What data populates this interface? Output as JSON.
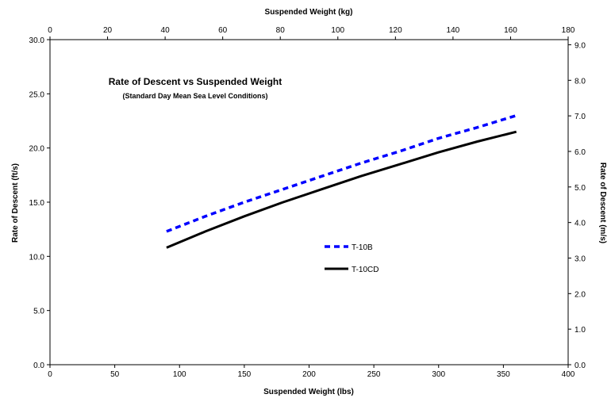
{
  "chart_data": {
    "type": "line",
    "title": "Rate of Descent vs Suspended Weight",
    "subtitle": "(Standard Day Mean Sea Level Conditions)",
    "xlabel": "Suspended Weight (lbs)",
    "ylabel": "Rate of Descent (ft/s)",
    "x2label": "Suspended Weight (kg)",
    "y2label": "Rate of Descent (m/s)",
    "xlim": [
      0,
      400
    ],
    "ylim": [
      0,
      30
    ],
    "x2lim": [
      0,
      180
    ],
    "y2lim": [
      0,
      9.144
    ],
    "xticks": [
      0,
      50,
      100,
      150,
      200,
      250,
      300,
      350,
      400
    ],
    "yticks": [
      0,
      5,
      10,
      15,
      20,
      25,
      30
    ],
    "x2ticks": [
      0,
      20,
      40,
      60,
      80,
      100,
      120,
      140,
      160,
      180
    ],
    "y2ticks": [
      0,
      1,
      2,
      3,
      4,
      5,
      6,
      7,
      8,
      9
    ],
    "xtick_labels": [
      "0",
      "50",
      "100",
      "150",
      "200",
      "250",
      "300",
      "350",
      "400"
    ],
    "ytick_labels": [
      "0.0",
      "5.0",
      "10.0",
      "15.0",
      "20.0",
      "25.0",
      "30.0"
    ],
    "x2tick_labels": [
      "0",
      "20",
      "40",
      "60",
      "80",
      "100",
      "120",
      "140",
      "160",
      "180"
    ],
    "y2tick_labels": [
      "0.0",
      "1.0",
      "2.0",
      "3.0",
      "4.0",
      "5.0",
      "6.0",
      "7.0",
      "8.0",
      "9.0"
    ],
    "grid": false,
    "legend_position": "center-right",
    "series": [
      {
        "name": "T-10B",
        "color": "#0000ff",
        "style": "dashed",
        "x": [
          90,
          120,
          150,
          180,
          210,
          240,
          270,
          300,
          330,
          360
        ],
        "y": [
          12.3,
          13.7,
          15.0,
          16.2,
          17.4,
          18.6,
          19.7,
          20.9,
          21.9,
          23.0
        ]
      },
      {
        "name": "T-10CD",
        "color": "#000000",
        "style": "solid",
        "x": [
          90,
          120,
          150,
          180,
          210,
          240,
          270,
          300,
          330,
          360
        ],
        "y": [
          10.8,
          12.3,
          13.7,
          15.0,
          16.2,
          17.4,
          18.5,
          19.6,
          20.6,
          21.5
        ]
      }
    ]
  }
}
